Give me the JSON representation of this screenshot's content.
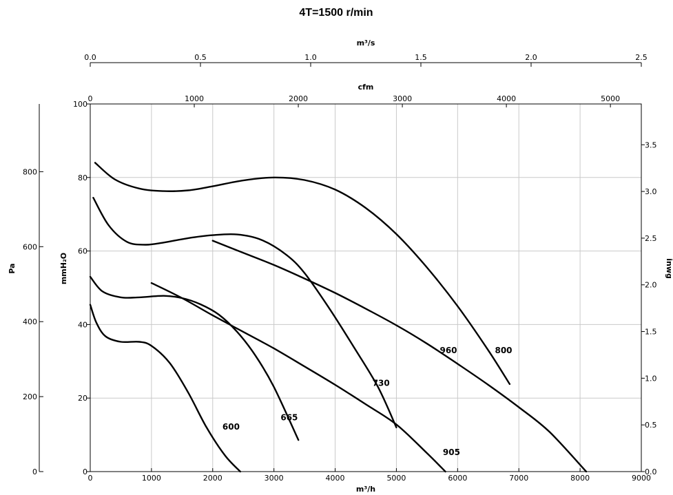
{
  "chart_data": {
    "type": "line",
    "title": "4T=1500 r/min",
    "x_axis": {
      "label": "m³/h",
      "ticks": [
        "0",
        "1000",
        "2000",
        "3000",
        "4000",
        "5000",
        "6000",
        "7000",
        "8000",
        "9000"
      ],
      "lim": [
        0,
        9000
      ]
    },
    "y_axis_left": {
      "label": "mmH₂O",
      "ticks": [
        "0",
        "20",
        "40",
        "60",
        "80",
        "100"
      ],
      "lim": [
        0,
        100
      ]
    },
    "y_axis_pa": {
      "label": "Pa",
      "ticks": [
        "0",
        "200",
        "400",
        "600",
        "800"
      ],
      "lim": [
        0,
        980.7
      ]
    },
    "y_axis_right": {
      "label": "inwg",
      "ticks": [
        "0.0",
        "0.5",
        "1.0",
        "1.5",
        "2.0",
        "2.5",
        "3.0",
        "3.5"
      ],
      "lim": [
        0,
        3.937
      ]
    },
    "top_axis_m3s": {
      "label": "m³/s",
      "ticks": [
        "0.0",
        "0.5",
        "1.0",
        "1.5",
        "2.0",
        "2.5"
      ],
      "lim": [
        0,
        2.5
      ]
    },
    "top_axis_cfm": {
      "label": "cfm",
      "ticks": [
        "0",
        "1000",
        "2000",
        "3000",
        "4000",
        "5000"
      ],
      "lim": [
        0,
        5297
      ]
    },
    "grid": true,
    "series": [
      {
        "name": "600",
        "x": [
          0,
          100,
          250,
          500,
          800,
          1000,
          1300,
          1600,
          1900,
          2200,
          2450
        ],
        "y": [
          45.4,
          40.5,
          36.8,
          35.3,
          35.3,
          34.2,
          29.5,
          21.5,
          12.0,
          4.4,
          0
        ]
      },
      {
        "name": "665",
        "x": [
          0,
          200,
          500,
          800,
          1200,
          1500,
          1800,
          2100,
          2400,
          2700,
          3000,
          3400
        ],
        "y": [
          53.0,
          49.0,
          47.4,
          47.4,
          47.8,
          47.2,
          45.5,
          42.7,
          38.0,
          31.5,
          23.0,
          8.6
        ]
      },
      {
        "name": "730",
        "x": [
          50,
          300,
          600,
          900,
          1200,
          1600,
          2000,
          2400,
          2800,
          3200,
          3500,
          3900,
          4300,
          4700,
          5000
        ],
        "y": [
          74.5,
          67.0,
          62.5,
          61.7,
          62.3,
          63.5,
          64.3,
          64.5,
          63.0,
          59.0,
          54.0,
          44.5,
          34.0,
          23.0,
          12.0
        ]
      },
      {
        "name": "800",
        "x": [
          80,
          400,
          800,
          1200,
          1600,
          2000,
          2500,
          3000,
          3500,
          4000,
          4500,
          5000,
          5500,
          6000,
          6500,
          6850
        ],
        "y": [
          84.0,
          79.5,
          77.0,
          76.3,
          76.5,
          77.6,
          79.2,
          80.0,
          79.3,
          76.7,
          71.7,
          64.6,
          55.5,
          45.0,
          33.0,
          23.8
        ]
      },
      {
        "name": "905",
        "x": [
          1000,
          1500,
          2000,
          2500,
          3000,
          3500,
          4000,
          4500,
          5000,
          5500,
          5800
        ],
        "y": [
          51.3,
          47.2,
          42.5,
          38.0,
          33.5,
          28.6,
          23.6,
          18.3,
          12.8,
          5.0,
          0
        ]
      },
      {
        "name": "960",
        "x": [
          2000,
          2500,
          3000,
          3500,
          4000,
          4500,
          5000,
          5500,
          6000,
          6500,
          7000,
          7500,
          8100
        ],
        "y": [
          62.8,
          59.5,
          56.2,
          52.5,
          48.6,
          44.3,
          39.8,
          34.8,
          29.3,
          23.6,
          17.5,
          10.8,
          0
        ]
      }
    ]
  }
}
